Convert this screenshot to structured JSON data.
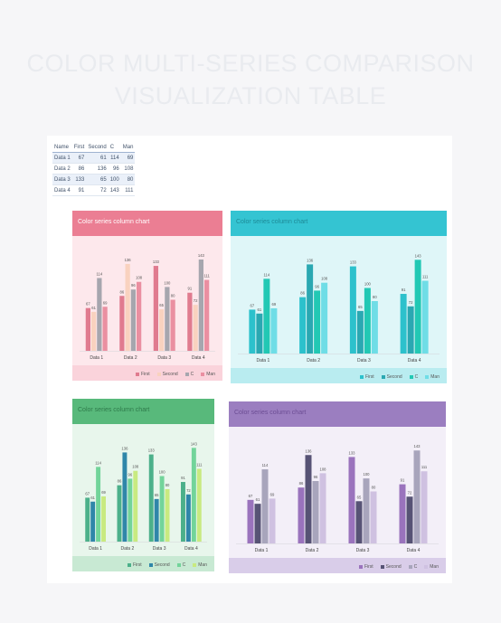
{
  "page_title": "COLOR MULTI-SERIES COMPARISON VISUALIZATION TABLE",
  "table": {
    "headers": [
      "Name",
      "First",
      "Second",
      "C",
      "Man"
    ],
    "rows": [
      [
        "Data 1",
        "67",
        "61",
        "114",
        "69"
      ],
      [
        "Data 2",
        "86",
        "136",
        "96",
        "108"
      ],
      [
        "Data 3",
        "133",
        "65",
        "100",
        "80"
      ],
      [
        "Data 4",
        "91",
        "72",
        "143",
        "111"
      ]
    ]
  },
  "chart_data": [
    {
      "type": "bar",
      "title": "Color series column chart",
      "categories": [
        "Data 1",
        "Data 2",
        "Data 3",
        "Data 4"
      ],
      "series": [
        {
          "name": "First",
          "values": [
            67,
            86,
            133,
            91
          ]
        },
        {
          "name": "Second",
          "values": [
            61,
            136,
            65,
            72
          ]
        },
        {
          "name": "C",
          "values": [
            114,
            96,
            100,
            143
          ]
        },
        {
          "name": "Man",
          "values": [
            69,
            108,
            80,
            111
          ]
        }
      ],
      "ylim": [
        0,
        160
      ],
      "legend": "bottom-right",
      "colors": {
        "header": "#eb7e93",
        "body": "#fde8ec",
        "footer": "#fad3db",
        "title_text": "#ffffff",
        "series": [
          "#e07b8f",
          "#f9d2bf",
          "#a6a6ae",
          "#ea8fa1"
        ]
      }
    },
    {
      "type": "bar",
      "title": "Color series column chart",
      "categories": [
        "Data 1",
        "Data 2",
        "Data 3",
        "Data 4"
      ],
      "series": [
        {
          "name": "First",
          "values": [
            67,
            86,
            133,
            91
          ]
        },
        {
          "name": "Second",
          "values": [
            61,
            136,
            65,
            72
          ]
        },
        {
          "name": "C",
          "values": [
            114,
            96,
            100,
            143
          ]
        },
        {
          "name": "Man",
          "values": [
            69,
            108,
            80,
            111
          ]
        }
      ],
      "ylim": [
        0,
        160
      ],
      "legend": "bottom-right",
      "colors": {
        "header": "#34c4d2",
        "body": "#dff6f8",
        "footer": "#b9ecf0",
        "title_text": "#1d8a97",
        "series": [
          "#2cc1cc",
          "#2aa8b2",
          "#22c8b4",
          "#6fdde6"
        ]
      }
    },
    {
      "type": "bar",
      "title": "Color series column chart",
      "categories": [
        "Data 1",
        "Data 2",
        "Data 3",
        "Data 4"
      ],
      "series": [
        {
          "name": "First",
          "values": [
            67,
            86,
            133,
            91
          ]
        },
        {
          "name": "Second",
          "values": [
            61,
            136,
            65,
            72
          ]
        },
        {
          "name": "C",
          "values": [
            114,
            96,
            100,
            143
          ]
        },
        {
          "name": "Man",
          "values": [
            69,
            108,
            80,
            111
          ]
        }
      ],
      "ylim": [
        0,
        160
      ],
      "legend": "bottom-right",
      "colors": {
        "header": "#58b97b",
        "body": "#e8f6ec",
        "footer": "#c8e9d3",
        "title_text": "#2e7a4a",
        "series": [
          "#4cb08a",
          "#2f86a9",
          "#72d49a",
          "#c8ea80"
        ]
      }
    },
    {
      "type": "bar",
      "title": "Color series column chart",
      "categories": [
        "Data 1",
        "Data 2",
        "Data 3",
        "Data 4"
      ],
      "series": [
        {
          "name": "First",
          "values": [
            67,
            86,
            133,
            91
          ]
        },
        {
          "name": "Second",
          "values": [
            61,
            136,
            65,
            72
          ]
        },
        {
          "name": "C",
          "values": [
            114,
            96,
            100,
            143
          ]
        },
        {
          "name": "Man",
          "values": [
            69,
            108,
            80,
            111
          ]
        }
      ],
      "ylim": [
        0,
        160
      ],
      "legend": "bottom-right",
      "colors": {
        "header": "#9b7ec0",
        "body": "#f3eff8",
        "footer": "#d9cde9",
        "title_text": "#6c4d94",
        "series": [
          "#9a73bd",
          "#575375",
          "#a8a5bc",
          "#cfc1e1"
        ]
      }
    }
  ]
}
